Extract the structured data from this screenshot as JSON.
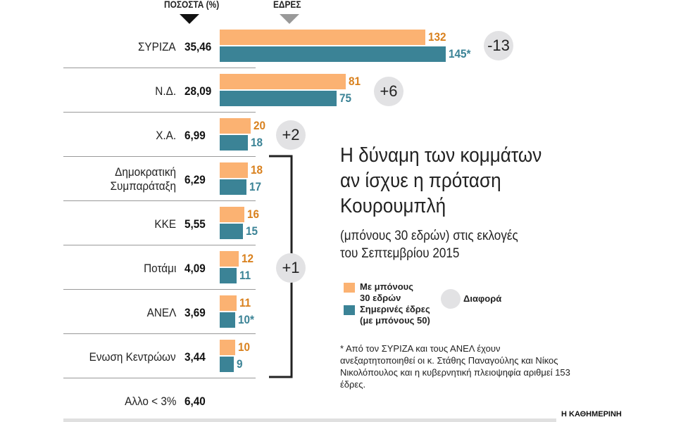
{
  "headers": {
    "percent": "ΠΟΣΟΣΤΑ (%)",
    "seats": "ΕΔΡΕΣ"
  },
  "colors": {
    "proposal": "#fbb272",
    "current": "#3b8396",
    "proposal_text": "#d9811e",
    "current_text": "#3b8396",
    "diff_circle": "#e2e2e4"
  },
  "chart_data": {
    "type": "bar",
    "title": "Η δύναμη των κομμάτων αν ίσχυε η πρόταση Κουρουμπλή",
    "subtitle": "(μπόνους 30 εδρών) στις εκλογές του Σεπτεμβρίου 2015",
    "categories": [
      "ΣΥΡΙΖΑ",
      "Ν.Δ.",
      "Χ.Α.",
      "Δημοκρατική Συμπαράταξη",
      "ΚΚΕ",
      "Ποτάμι",
      "ΑΝΕΛ",
      "Ενωση Κεντρώων",
      "Αλλο < 3%"
    ],
    "percentages": [
      "35,46",
      "28,09",
      "6,99",
      "6,29",
      "5,55",
      "4,09",
      "3,69",
      "3,44",
      "6,40"
    ],
    "series": [
      {
        "name": "Με μπόνους 30 εδρών",
        "values": [
          132,
          81,
          20,
          18,
          16,
          12,
          11,
          10,
          null
        ],
        "labels": [
          "132",
          "81",
          "20",
          "18",
          "16",
          "12",
          "11",
          "10",
          ""
        ]
      },
      {
        "name": "Σημερινές έδρες (με μπόνους 50)",
        "values": [
          145,
          75,
          18,
          17,
          15,
          11,
          10,
          9,
          null
        ],
        "labels": [
          "145*",
          "75",
          "18",
          "17",
          "15",
          "11",
          "10*",
          "9",
          ""
        ]
      }
    ],
    "differences": [
      {
        "label": "-13",
        "parties": [
          "ΣΥΡΙΖΑ"
        ]
      },
      {
        "label": "+6",
        "parties": [
          "Ν.Δ."
        ]
      },
      {
        "label": "+2",
        "parties": [
          "Χ.Α."
        ]
      },
      {
        "label": "+1",
        "parties": [
          "Δημοκρατική Συμπαράταξη",
          "ΚΚΕ",
          "Ποτάμι",
          "ΑΝΕΛ",
          "Ενωση Κεντρώων"
        ]
      }
    ],
    "legend": {
      "proposal_line1": "Με μπόνους",
      "proposal_line2": "30 εδρών",
      "current_line1": "Σημερινές έδρες",
      "current_line2": "(με μπόνους 50)",
      "diff": "Διαφορά"
    }
  },
  "title_lines": [
    "Η δύναμη των κομμάτων",
    "αν ίσχυε η πρόταση",
    "Κουρουμπλή"
  ],
  "subtitle_lines": [
    "(μπόνους 30 εδρών) στις εκλογές",
    "του Σεπτεμβρίου 2015"
  ],
  "footnote": "* Από τον ΣΥΡΙΖΑ και τους ΑΝΕΛ έχουν ανεξαρτητοποιηθεί οι κ. Στάθης Παναγούλης και Νίκος Νικολόπουλος και η κυβερνητική πλειοψηφία αριθμεί 153 έδρες.",
  "source": "Η ΚΑΘΗΜΕΡΙΝΗ"
}
